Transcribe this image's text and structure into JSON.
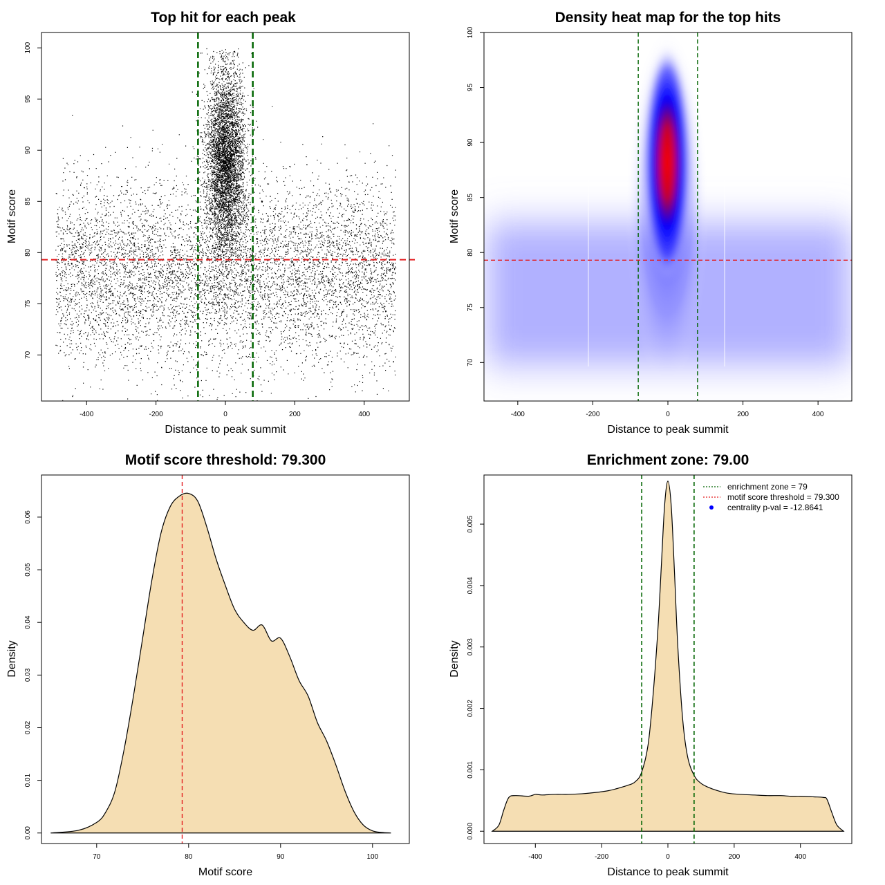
{
  "colors": {
    "points": "#000000",
    "enrichment_line": "#006400",
    "threshold_line": "#e31a1c",
    "density_fill": "#f5deb3",
    "heat_low": "#ffffff",
    "heat_mid": "#0000ff",
    "heat_high": "#ff0000",
    "centrality_marker": "#0000ff"
  },
  "chart_data": [
    {
      "type": "scatter",
      "title": "Top hit for each peak",
      "xlabel": "Distance to peak summit",
      "ylabel": "Motif score",
      "xlim": [
        -530,
        530
      ],
      "ylim": [
        65.5,
        101.5
      ],
      "xticks": [
        -400,
        -200,
        0,
        200,
        400
      ],
      "yticks": [
        70,
        75,
        80,
        85,
        90,
        95,
        100
      ],
      "grid": false,
      "vlines": [
        -79,
        79
      ],
      "hline": 79.3,
      "approx_distribution": [
        {
          "component": "background",
          "x_range": [
            -490,
            490
          ],
          "y_center": 78,
          "y_spread": 4.5
        },
        {
          "component": "central peak",
          "x_center": 0,
          "x_spread": 28,
          "y_center": 89,
          "y_spread": 4.5
        }
      ]
    },
    {
      "type": "heatmap",
      "title": "Density heat map for the top hits",
      "xlabel": "Distance to peak summit",
      "ylabel": "Motif score",
      "xlim": [
        -490,
        490
      ],
      "ylim": [
        66.5,
        100
      ],
      "xticks": [
        -400,
        -200,
        0,
        200,
        400
      ],
      "yticks": [
        70,
        75,
        80,
        85,
        90,
        95,
        100
      ],
      "vlines": [
        -79,
        79
      ],
      "hline": 79.3,
      "color_scale": [
        "white",
        "blue",
        "red"
      ],
      "density_peak": {
        "x": 0,
        "y": 90.5
      }
    },
    {
      "type": "area",
      "title": "Motif score threshold: 79.300",
      "xlabel": "Motif score",
      "ylabel": "Density",
      "xlim": [
        64,
        104
      ],
      "ylim": [
        -0.002,
        0.068
      ],
      "xticks": [
        70,
        80,
        90,
        100
      ],
      "yticks": [
        0.0,
        0.01,
        0.02,
        0.03,
        0.04,
        0.05,
        0.06
      ],
      "ytick_labels": [
        "0.00",
        "0.01",
        "0.02",
        "0.03",
        "0.04",
        "0.05",
        "0.06"
      ],
      "vline": 79.3,
      "x": [
        65,
        68,
        70,
        71,
        72,
        73,
        74,
        75,
        76,
        77,
        78,
        79,
        80,
        81,
        82,
        83,
        84,
        85,
        86,
        87,
        88,
        89,
        90,
        91,
        92,
        93,
        94,
        95,
        96,
        97,
        98,
        99,
        100,
        101,
        102
      ],
      "y": [
        0.0,
        0.0005,
        0.002,
        0.004,
        0.008,
        0.016,
        0.026,
        0.037,
        0.048,
        0.057,
        0.062,
        0.064,
        0.0645,
        0.063,
        0.058,
        0.052,
        0.047,
        0.0425,
        0.04,
        0.0385,
        0.0395,
        0.0365,
        0.037,
        0.0335,
        0.029,
        0.026,
        0.021,
        0.0175,
        0.013,
        0.008,
        0.004,
        0.0015,
        0.0004,
        0.0001,
        0.0
      ]
    },
    {
      "type": "area",
      "title": "Enrichment zone: 79.00",
      "xlabel": "Distance to peak summit",
      "ylabel": "Density",
      "xlim": [
        -555,
        555
      ],
      "ylim": [
        -0.0002,
        0.0058
      ],
      "xticks": [
        -400,
        -200,
        0,
        200,
        400
      ],
      "yticks": [
        0.0,
        0.001,
        0.002,
        0.003,
        0.004,
        0.005
      ],
      "ytick_labels": [
        "0.000",
        "0.001",
        "0.002",
        "0.003",
        "0.004",
        "0.005"
      ],
      "vlines": [
        -79,
        79
      ],
      "x": [
        -530,
        -510,
        -495,
        -480,
        -460,
        -420,
        -400,
        -380,
        -340,
        -300,
        -260,
        -220,
        -180,
        -150,
        -120,
        -100,
        -80,
        -60,
        -45,
        -30,
        -20,
        -10,
        0,
        10,
        20,
        30,
        45,
        60,
        80,
        100,
        120,
        150,
        180,
        220,
        260,
        300,
        340,
        370,
        400,
        440,
        470,
        480,
        495,
        510,
        530
      ],
      "y": [
        0.0,
        0.0001,
        0.00035,
        0.00055,
        0.00058,
        0.00057,
        0.0006,
        0.00059,
        0.0006,
        0.0006,
        0.00061,
        0.00063,
        0.00066,
        0.0007,
        0.00075,
        0.0008,
        0.00095,
        0.0014,
        0.0022,
        0.0033,
        0.0043,
        0.0053,
        0.0057,
        0.0053,
        0.0042,
        0.003,
        0.0018,
        0.0012,
        0.0009,
        0.00078,
        0.00072,
        0.00066,
        0.00062,
        0.0006,
        0.00059,
        0.00058,
        0.00058,
        0.00057,
        0.00057,
        0.00056,
        0.00055,
        0.00052,
        0.0003,
        0.0001,
        0.0
      ],
      "legend": {
        "placement": "top-right",
        "entries": [
          {
            "label": "enrichment zone = 79",
            "style": "dotted-line",
            "color": "#006400"
          },
          {
            "label": "motif score threshold = 79.300",
            "style": "dotted-line",
            "color": "#e31a1c"
          },
          {
            "label": "centrality p-val = -12.8641",
            "style": "point",
            "color": "#0000ff"
          }
        ]
      }
    }
  ]
}
